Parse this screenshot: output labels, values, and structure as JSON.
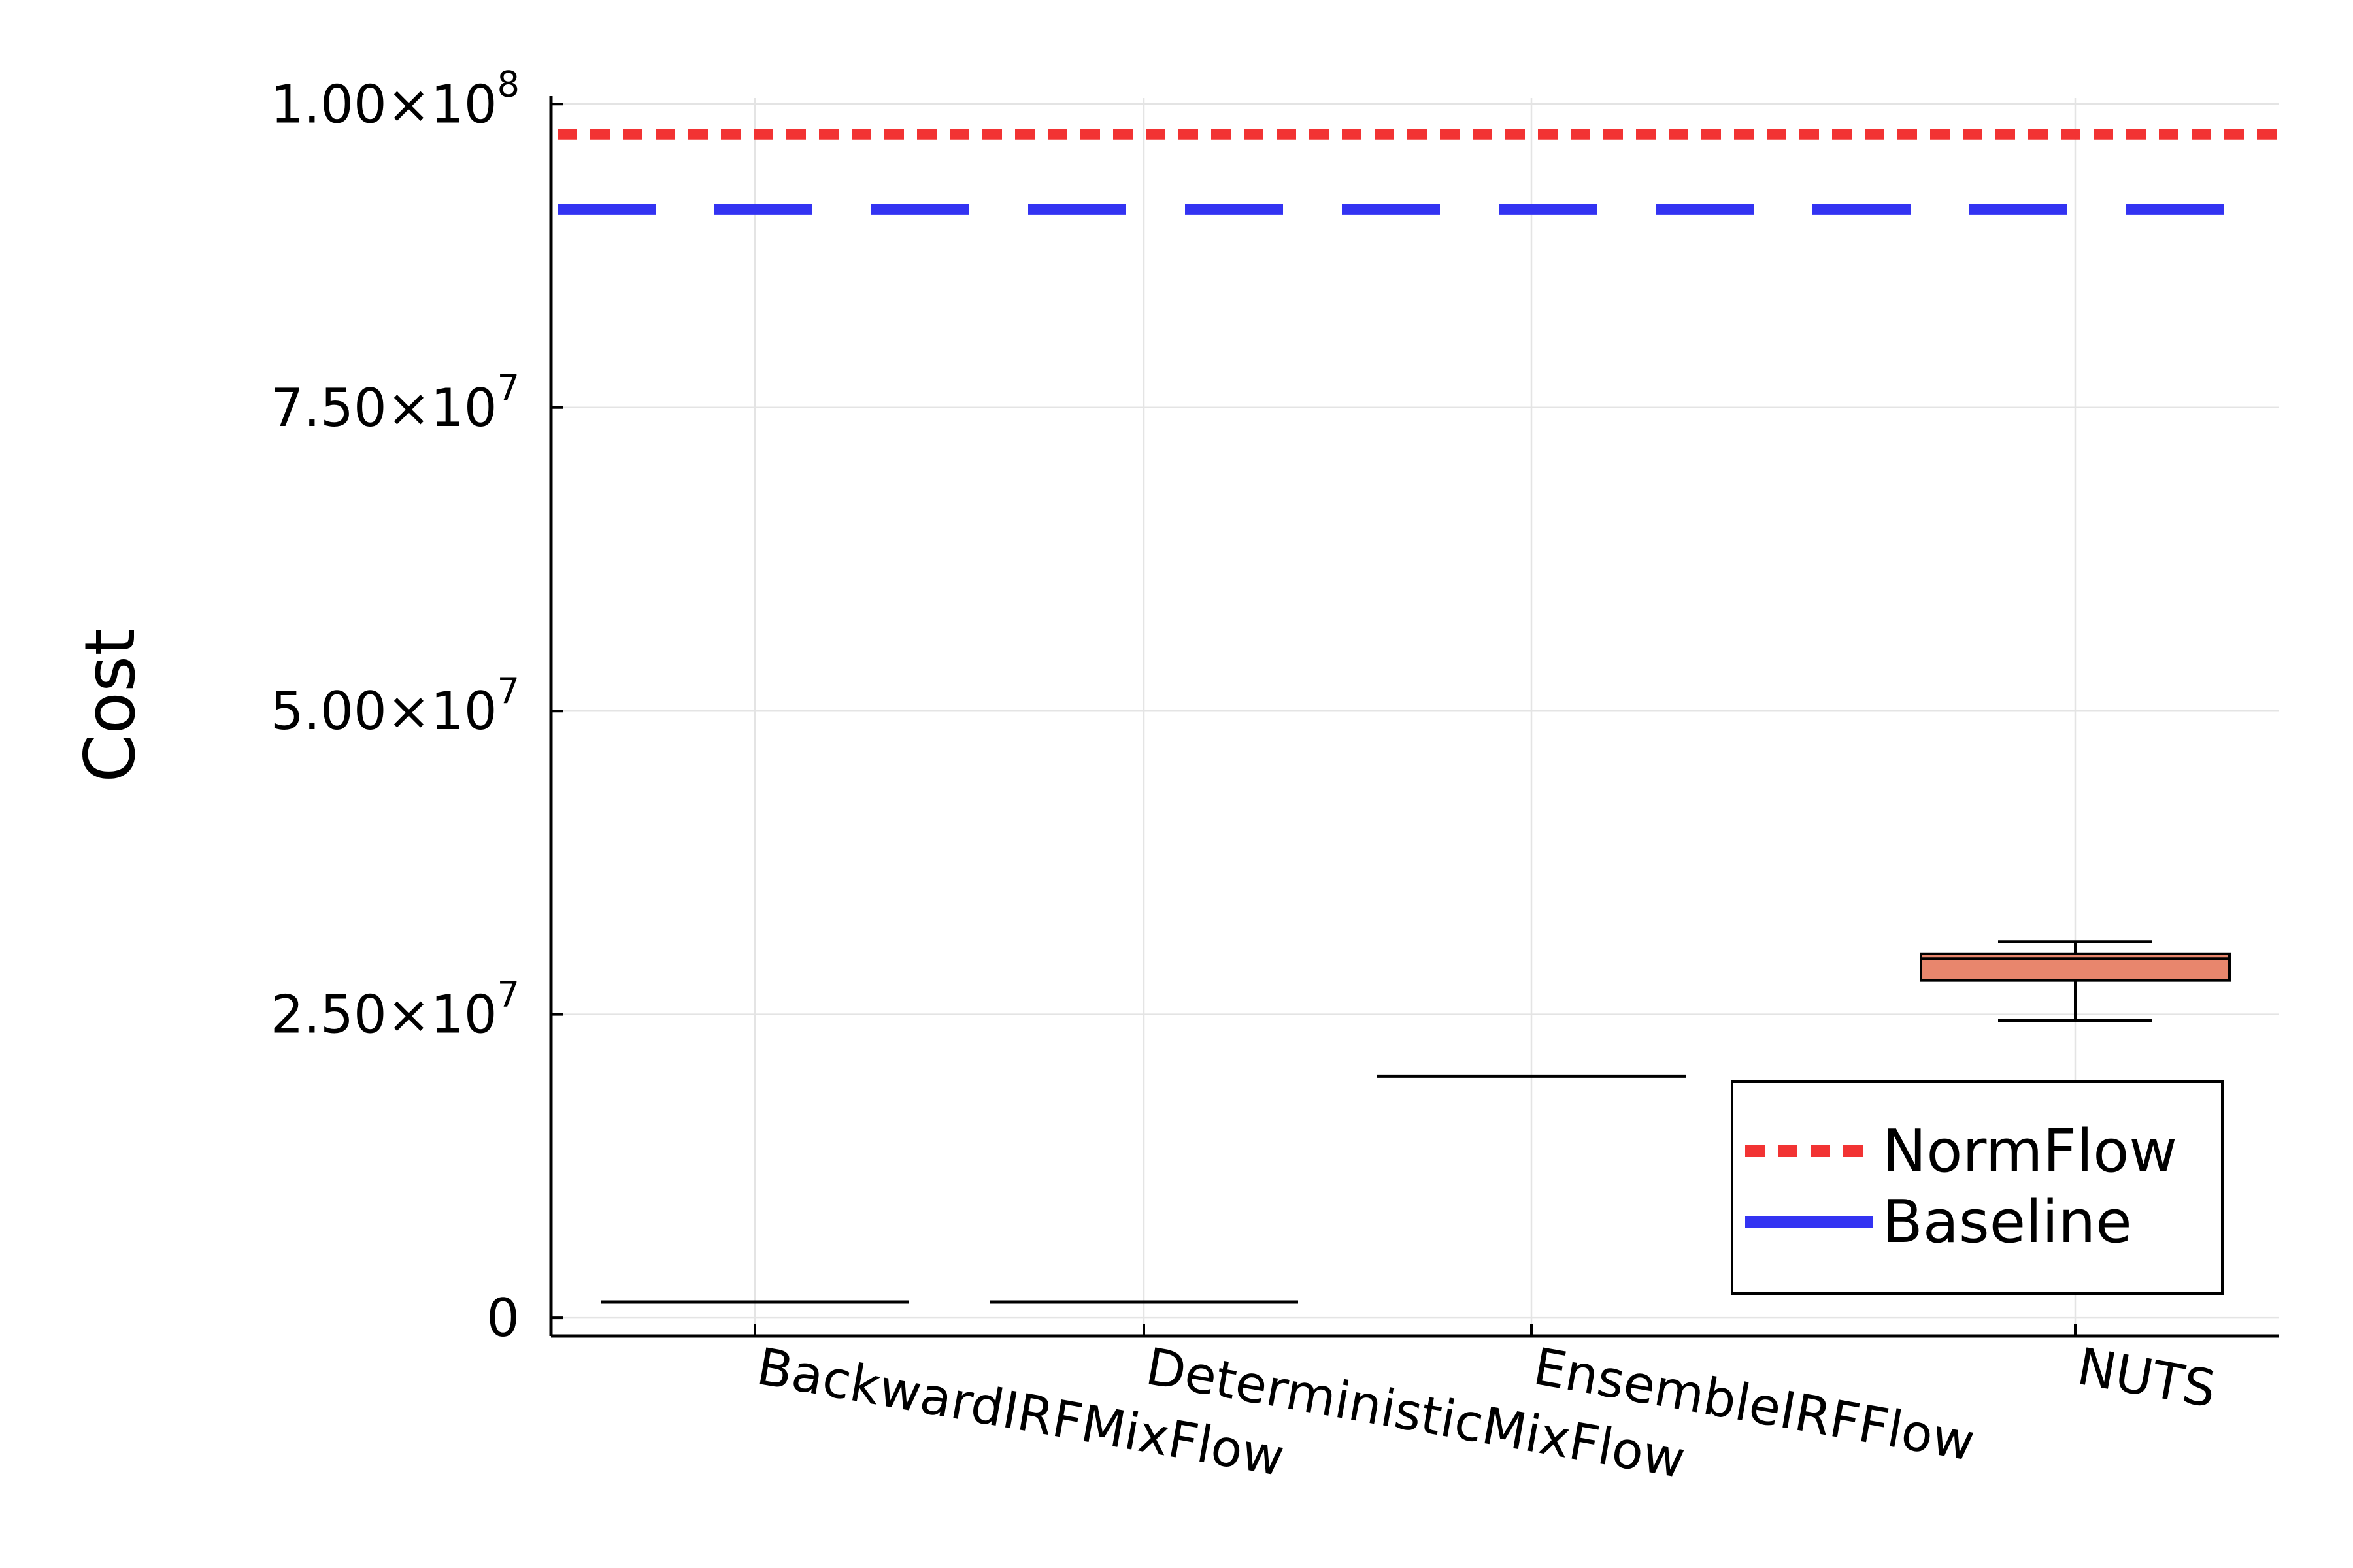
{
  "chart_data": {
    "type": "box",
    "ylabel": "Cost",
    "xlabel": "",
    "title": "",
    "ylim": [
      -1500000,
      100500000
    ],
    "grid": true,
    "legend_position": "bottom-right",
    "categories": [
      "BackwardIRFMixFlow",
      "DeterministicMixFlow",
      "EnsembleIRFFlow",
      "NUTS"
    ],
    "boxes": [
      {
        "category": "BackwardIRFMixFlow",
        "whisker_low": 1300000,
        "q1": 1300000,
        "median": 1300000,
        "q3": 1300000,
        "whisker_high": 1300000,
        "color": "#000000"
      },
      {
        "category": "DeterministicMixFlow",
        "whisker_low": 1300000,
        "q1": 1300000,
        "median": 1300000,
        "q3": 1300000,
        "whisker_high": 1300000,
        "color": "#000000"
      },
      {
        "category": "EnsembleIRFFlow",
        "whisker_low": 19900000,
        "q1": 19900000,
        "median": 19900000,
        "q3": 19900000,
        "whisker_high": 19900000,
        "color": "#000000"
      },
      {
        "category": "NUTS",
        "whisker_low": 24500000,
        "q1": 27800000,
        "median": 29600000,
        "q3": 30000000,
        "whisker_high": 31000000,
        "color": "#e8866d"
      }
    ],
    "hlines": [
      {
        "name": "NormFlow",
        "value": 97500000,
        "color": "#f23333",
        "style": "dotted"
      },
      {
        "name": "Baseline",
        "value": 91300000,
        "color": "#3333f2",
        "style": "dashed"
      }
    ],
    "yticks": [
      {
        "value": 0,
        "mantissa": "0",
        "exponent": ""
      },
      {
        "value": 25000000,
        "mantissa": "2.50×10",
        "exponent": "7"
      },
      {
        "value": 50000000,
        "mantissa": "5.00×10",
        "exponent": "7"
      },
      {
        "value": 75000000,
        "mantissa": "7.50×10",
        "exponent": "7"
      },
      {
        "value": 100000000,
        "mantissa": "1.00×10",
        "exponent": "8"
      }
    ]
  }
}
